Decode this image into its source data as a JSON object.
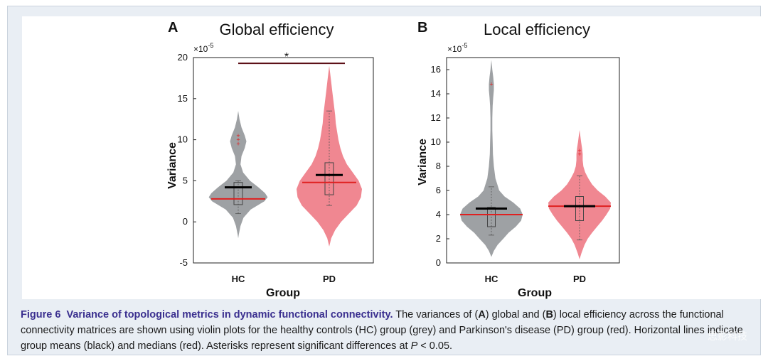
{
  "caption": {
    "label": "Figure 6",
    "title": "Variance of topological metrics in dynamic functional connectivity.",
    "seg1": " The variances of (",
    "bold_a": "A",
    "seg2": ") global and (",
    "bold_b": "B",
    "seg3": ") local efficiency across the functional connectivity matrices are shown using violin plots for the healthy controls (HC) group (grey) and Parkinson's disease (PD) group (red). Horizontal lines indicate group means (black) and medians (red). Asterisks represent significant differences at ",
    "italic_p": "P",
    "seg4": " < 0.05."
  },
  "watermark": "思影科技",
  "colors": {
    "hc": "#9ea1a4",
    "pd": "#f08791",
    "mean": "#000000",
    "median": "#e02020",
    "sig_bar": "#5a0d14"
  },
  "chart_data": [
    {
      "type": "violin",
      "panel_letter": "A",
      "title": "Global efficiency",
      "xlabel": "Group",
      "ylabel": "Variance",
      "exponent": "×10",
      "exponent_power": "-5",
      "ylim": [
        -5,
        20
      ],
      "yticks": [
        -5,
        0,
        5,
        10,
        15,
        20
      ],
      "categories": [
        "HC",
        "PD"
      ],
      "series": [
        {
          "name": "HC",
          "mean": 4.2,
          "median": 2.8,
          "q1": 2.1,
          "q3": 4.8,
          "whisker_low": 1.0,
          "whisker_high": 5.0,
          "outliers": [
            9.5,
            10.0,
            10.5
          ],
          "violin_profile": [
            [
              -2.0,
              0.0
            ],
            [
              -1.5,
              0.02
            ],
            [
              -0.5,
              0.07
            ],
            [
              0.5,
              0.16
            ],
            [
              1.5,
              0.38
            ],
            [
              2.5,
              0.8
            ],
            [
              3.0,
              0.9
            ],
            [
              3.5,
              0.82
            ],
            [
              4.2,
              0.62
            ],
            [
              5.0,
              0.36
            ],
            [
              6.0,
              0.15
            ],
            [
              7.0,
              0.07
            ],
            [
              8.0,
              0.1
            ],
            [
              9.0,
              0.2
            ],
            [
              9.8,
              0.25
            ],
            [
              10.5,
              0.2
            ],
            [
              11.5,
              0.1
            ],
            [
              12.5,
              0.04
            ],
            [
              13.5,
              0.0
            ]
          ]
        },
        {
          "name": "PD",
          "mean": 5.7,
          "median": 4.8,
          "q1": 3.3,
          "q3": 7.2,
          "whisker_low": 2.0,
          "whisker_high": 13.5,
          "outliers": [],
          "violin_profile": [
            [
              -3.0,
              0.0
            ],
            [
              -2.0,
              0.06
            ],
            [
              -1.0,
              0.18
            ],
            [
              0.0,
              0.36
            ],
            [
              1.0,
              0.6
            ],
            [
              2.0,
              0.84
            ],
            [
              3.0,
              0.97
            ],
            [
              4.0,
              1.0
            ],
            [
              5.0,
              0.9
            ],
            [
              6.0,
              0.72
            ],
            [
              7.0,
              0.54
            ],
            [
              8.0,
              0.42
            ],
            [
              9.0,
              0.34
            ],
            [
              10.0,
              0.28
            ],
            [
              11.0,
              0.24
            ],
            [
              12.0,
              0.2
            ],
            [
              13.0,
              0.18
            ],
            [
              14.0,
              0.15
            ],
            [
              15.0,
              0.12
            ],
            [
              16.0,
              0.09
            ],
            [
              17.0,
              0.06
            ],
            [
              18.0,
              0.03
            ],
            [
              19.0,
              0.0
            ]
          ]
        }
      ],
      "significance": {
        "label": "*",
        "y": 19.3
      }
    },
    {
      "type": "violin",
      "panel_letter": "B",
      "title": "Local efficiency",
      "xlabel": "Group",
      "ylabel": "Variance",
      "exponent": "×10",
      "exponent_power": "-5",
      "ylim": [
        0,
        17
      ],
      "yticks": [
        0,
        2,
        4,
        6,
        8,
        10,
        12,
        14,
        16
      ],
      "categories": [
        "HC",
        "PD"
      ],
      "series": [
        {
          "name": "HC",
          "mean": 4.5,
          "median": 4.0,
          "q1": 3.0,
          "q3": 4.6,
          "whisker_low": 2.3,
          "whisker_high": 6.3,
          "outliers": [
            14.8
          ],
          "violin_profile": [
            [
              0.5,
              0.0
            ],
            [
              1.0,
              0.08
            ],
            [
              1.5,
              0.2
            ],
            [
              2.0,
              0.38
            ],
            [
              2.5,
              0.55
            ],
            [
              3.0,
              0.78
            ],
            [
              3.5,
              0.95
            ],
            [
              4.0,
              1.0
            ],
            [
              4.5,
              0.92
            ],
            [
              5.0,
              0.7
            ],
            [
              5.5,
              0.42
            ],
            [
              6.0,
              0.25
            ],
            [
              7.0,
              0.13
            ],
            [
              8.0,
              0.08
            ],
            [
              9.0,
              0.05
            ],
            [
              10.0,
              0.04
            ],
            [
              11.0,
              0.03
            ],
            [
              12.0,
              0.03
            ],
            [
              13.0,
              0.04
            ],
            [
              13.7,
              0.06
            ],
            [
              14.3,
              0.08
            ],
            [
              14.8,
              0.08
            ],
            [
              15.4,
              0.06
            ],
            [
              16.0,
              0.03
            ],
            [
              16.8,
              0.0
            ]
          ]
        },
        {
          "name": "PD",
          "mean": 4.7,
          "median": 4.7,
          "q1": 3.5,
          "q3": 5.5,
          "whisker_low": 1.9,
          "whisker_high": 7.2,
          "outliers": [
            9.0,
            9.3
          ],
          "violin_profile": [
            [
              0.3,
              0.0
            ],
            [
              0.8,
              0.06
            ],
            [
              1.5,
              0.16
            ],
            [
              2.0,
              0.26
            ],
            [
              2.5,
              0.4
            ],
            [
              3.0,
              0.56
            ],
            [
              3.5,
              0.72
            ],
            [
              4.0,
              0.86
            ],
            [
              4.5,
              0.98
            ],
            [
              5.0,
              1.0
            ],
            [
              5.5,
              0.82
            ],
            [
              6.0,
              0.58
            ],
            [
              6.5,
              0.4
            ],
            [
              7.0,
              0.28
            ],
            [
              7.5,
              0.18
            ],
            [
              8.0,
              0.12
            ],
            [
              8.5,
              0.1
            ],
            [
              9.0,
              0.1
            ],
            [
              9.5,
              0.08
            ],
            [
              10.0,
              0.05
            ],
            [
              10.6,
              0.02
            ],
            [
              11.0,
              0.0
            ]
          ]
        }
      ]
    }
  ]
}
